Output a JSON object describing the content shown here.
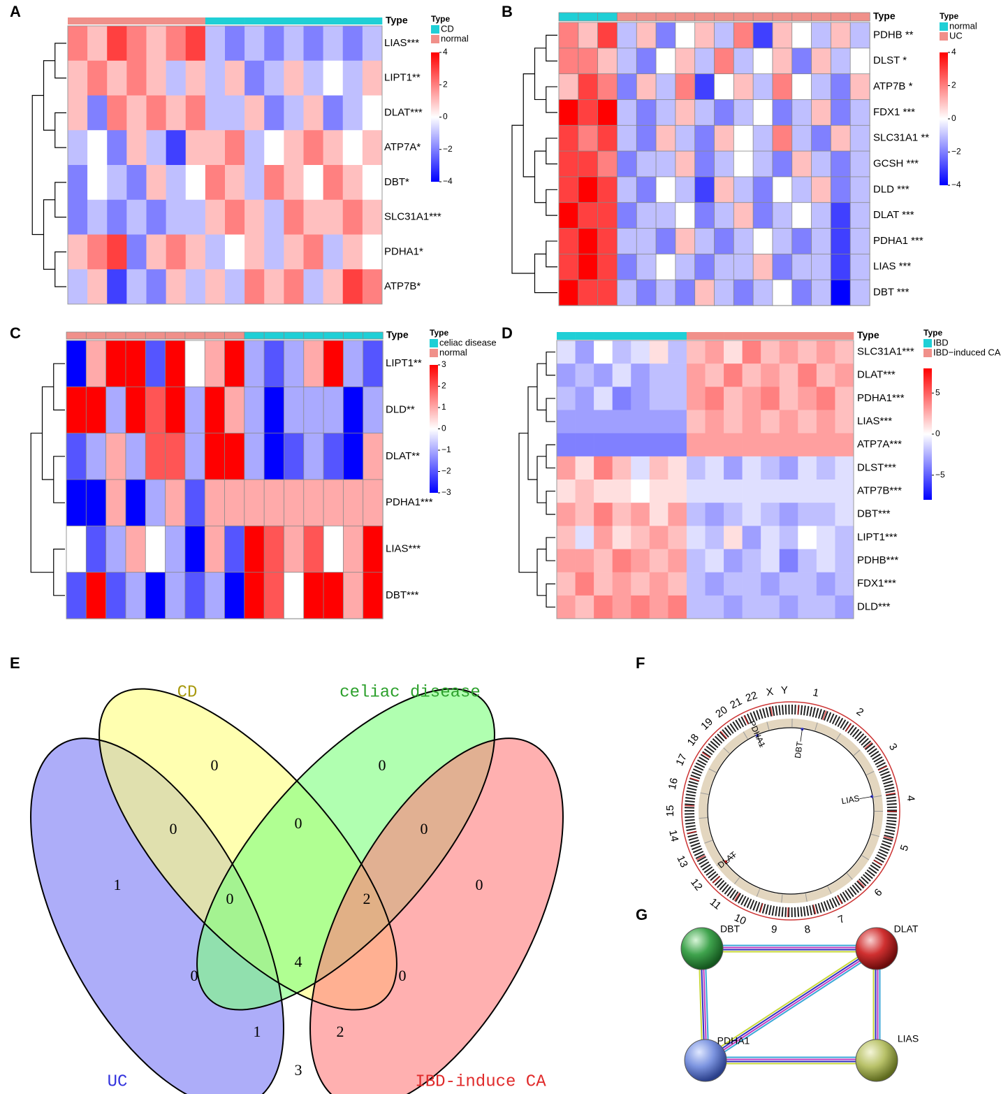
{
  "chart_data": [
    {
      "type": "heatmap",
      "panel": "A",
      "annotation_title": "Type",
      "legend_title": "Type",
      "groups": [
        {
          "name": "CD",
          "color": "#1fcfd6"
        },
        {
          "name": "normal",
          "color": "#f0908a"
        }
      ],
      "rows": [
        "LIAS***",
        "LIPT1**",
        "DLAT***",
        "ATP7A*",
        "DBT*",
        "SLC31A1***",
        "PDHA1*",
        "ATP7B*"
      ],
      "column_groups": [
        1,
        1,
        1,
        1,
        1,
        1,
        1,
        0,
        0,
        0,
        0,
        0,
        0,
        0,
        0,
        0
      ],
      "values": [
        [
          2,
          1,
          3,
          2,
          1,
          2,
          3,
          -1,
          -2,
          -1,
          -2,
          -1,
          -2,
          -1,
          -2,
          -1
        ],
        [
          1,
          2,
          1,
          2,
          1,
          -1,
          1,
          -1,
          1,
          -2,
          -1,
          1,
          -1,
          0,
          -1,
          1
        ],
        [
          1,
          -2,
          2,
          1,
          2,
          1,
          2,
          -1,
          -1,
          1,
          -2,
          -1,
          1,
          -2,
          -1,
          0
        ],
        [
          -1,
          0,
          -2,
          1,
          -1,
          -3,
          1,
          1,
          2,
          -1,
          0,
          1,
          2,
          1,
          0,
          1
        ],
        [
          -2,
          0,
          -1,
          -2,
          1,
          -1,
          0,
          2,
          1,
          -1,
          2,
          1,
          0,
          2,
          1,
          0
        ],
        [
          -2,
          -1,
          -2,
          -1,
          -2,
          -1,
          -1,
          1,
          2,
          1,
          -1,
          2,
          1,
          1,
          2,
          1
        ],
        [
          1,
          2,
          3,
          -2,
          1,
          2,
          1,
          -1,
          0,
          1,
          -1,
          1,
          2,
          -1,
          1,
          0
        ],
        [
          -1,
          1,
          -3,
          -1,
          -2,
          1,
          -1,
          1,
          -1,
          2,
          1,
          2,
          -1,
          1,
          3,
          2
        ]
      ],
      "zlim": [
        -4,
        4
      ],
      "zticks": [
        4,
        2,
        0,
        {
          "value": -2,
          "label": "−2"
        },
        {
          "value": -4,
          "label": "−4"
        }
      ],
      "colors": [
        "#0000ff",
        "#ffffff",
        "#ff0000"
      ],
      "cell_borders": false
    },
    {
      "type": "heatmap",
      "panel": "B",
      "annotation_title": "Type",
      "legend_title": "Type",
      "groups": [
        {
          "name": "normal",
          "color": "#1fcfd6"
        },
        {
          "name": "UC",
          "color": "#f0908a"
        }
      ],
      "rows": [
        "PDHB **",
        "DLST *",
        "ATP7B *",
        "FDX1 ***",
        "SLC31A1 **",
        "GCSH ***",
        "DLD ***",
        "DLAT ***",
        "PDHA1 ***",
        "LIAS ***",
        "DBT ***"
      ],
      "column_groups": [
        0,
        0,
        0,
        1,
        1,
        1,
        1,
        1,
        1,
        1,
        1,
        1,
        1,
        1,
        1,
        1
      ],
      "values": [
        [
          2,
          1,
          3,
          -1,
          1,
          -2,
          0,
          1,
          -1,
          2,
          -3,
          1,
          0,
          -1,
          1,
          -1
        ],
        [
          2,
          2,
          1,
          -1,
          -2,
          0,
          1,
          -1,
          2,
          -1,
          0,
          1,
          -2,
          1,
          -1,
          0
        ],
        [
          1,
          3,
          2,
          -2,
          1,
          -1,
          2,
          -3,
          0,
          1,
          -1,
          2,
          0,
          -1,
          -2,
          1
        ],
        [
          4,
          3,
          4,
          -1,
          -2,
          -1,
          1,
          -1,
          -2,
          -1,
          0,
          -2,
          -1,
          1,
          -2,
          -1
        ],
        [
          3,
          2,
          3,
          -1,
          -2,
          1,
          -1,
          -2,
          1,
          0,
          -1,
          2,
          -1,
          -2,
          1,
          -1
        ],
        [
          3,
          3,
          2,
          -2,
          -1,
          -1,
          1,
          -2,
          -1,
          0,
          -1,
          -2,
          1,
          -1,
          -2,
          -1
        ],
        [
          3,
          4,
          3,
          -1,
          -2,
          0,
          -1,
          -3,
          1,
          -1,
          -2,
          0,
          -1,
          1,
          -2,
          -1
        ],
        [
          4,
          3,
          3,
          -2,
          -1,
          -1,
          0,
          -2,
          -1,
          1,
          -2,
          -1,
          0,
          -1,
          -3,
          -1
        ],
        [
          3,
          4,
          3,
          -1,
          -1,
          -2,
          1,
          -1,
          -2,
          -1,
          0,
          -1,
          -2,
          -1,
          -3,
          -1
        ],
        [
          3,
          4,
          3,
          -2,
          -1,
          0,
          -1,
          -2,
          -1,
          -1,
          1,
          -2,
          -1,
          -1,
          -3,
          -1
        ],
        [
          4,
          3,
          3,
          -1,
          -2,
          -1,
          -2,
          1,
          -1,
          -2,
          -1,
          0,
          -2,
          -1,
          -4,
          -1
        ]
      ],
      "zlim": [
        -4,
        4
      ],
      "zticks": [
        4,
        2,
        0,
        {
          "value": -2,
          "label": "−2"
        },
        {
          "value": -4,
          "label": "−4"
        }
      ],
      "colors": [
        "#0000ff",
        "#ffffff",
        "#ff0000"
      ],
      "cell_borders": true
    },
    {
      "type": "heatmap",
      "panel": "C",
      "annotation_title": "Type",
      "legend_title": "Type",
      "groups": [
        {
          "name": "celiac disease",
          "color": "#1fcfd6"
        },
        {
          "name": "normal",
          "color": "#f0908a"
        }
      ],
      "rows": [
        "LIPT1**",
        "DLD**",
        "DLAT**",
        "PDHA1***",
        "LIAS***",
        "DBT***"
      ],
      "column_groups": [
        1,
        1,
        1,
        1,
        1,
        1,
        1,
        1,
        1,
        0,
        0,
        0,
        0,
        0,
        0,
        0
      ],
      "values": [
        [
          -3,
          1,
          3,
          3,
          -2,
          3,
          0,
          1,
          3,
          -1,
          -2,
          -1,
          1,
          3,
          -1,
          -2
        ],
        [
          3,
          3,
          -1,
          3,
          2,
          3,
          -1,
          3,
          1,
          -1,
          -3,
          -1,
          -1,
          -1,
          -3,
          -1
        ],
        [
          -2,
          -1,
          1,
          -1,
          2,
          2,
          -1,
          3,
          3,
          -1,
          -3,
          -2,
          -1,
          -2,
          -3,
          1
        ],
        [
          -3,
          -3,
          1,
          -3,
          -1,
          1,
          -2,
          1,
          1,
          1,
          1,
          1,
          1,
          1,
          1,
          1
        ],
        [
          0,
          -2,
          -1,
          1,
          0,
          -1,
          -3,
          1,
          -2,
          3,
          2,
          1,
          2,
          0,
          1,
          3
        ],
        [
          -2,
          3,
          -2,
          -1,
          -3,
          -1,
          -2,
          -1,
          -3,
          3,
          2,
          0,
          3,
          3,
          1,
          3
        ]
      ],
      "zlim": [
        -3,
        3
      ],
      "zticks": [
        3,
        2,
        1,
        0,
        {
          "value": -1,
          "label": "−1"
        },
        {
          "value": -2,
          "label": "−2"
        },
        {
          "value": -3,
          "label": "−3"
        }
      ],
      "colors": [
        "#0000ff",
        "#ffffff",
        "#ff0000"
      ],
      "cell_borders": true
    },
    {
      "type": "heatmap",
      "panel": "D",
      "annotation_title": "Type",
      "legend_title": "Type",
      "groups": [
        {
          "name": "IBD",
          "color": "#1fcfd6"
        },
        {
          "name": "IBD−induced CA",
          "color": "#f0908a"
        }
      ],
      "rows": [
        "SLC31A1***",
        "DLAT***",
        "PDHA1***",
        "LIAS***",
        "ATP7A***",
        "DLST***",
        "ATP7B***",
        "DBT***",
        "LIPT1***",
        "PDHB***",
        "FDX1***",
        "DLD***"
      ],
      "column_groups": [
        0,
        0,
        0,
        0,
        0,
        0,
        0,
        1,
        1,
        1,
        1,
        1,
        1,
        1,
        1,
        1
      ],
      "values": [
        [
          -1,
          -3,
          0,
          -2,
          -1,
          1,
          -2,
          2,
          3,
          1,
          4,
          2,
          3,
          2,
          3,
          2
        ],
        [
          -3,
          -2,
          -3,
          -1,
          -3,
          -2,
          -2,
          3,
          2,
          4,
          2,
          3,
          2,
          4,
          2,
          3
        ],
        [
          -2,
          -3,
          -1,
          -4,
          -3,
          -2,
          -2,
          3,
          4,
          2,
          3,
          4,
          2,
          3,
          4,
          2
        ],
        [
          -3,
          -3,
          -3,
          -3,
          -3,
          -3,
          -3,
          2,
          3,
          2,
          3,
          2,
          3,
          2,
          3,
          2
        ],
        [
          -4,
          -4,
          -4,
          -4,
          -4,
          -4,
          -4,
          3,
          3,
          3,
          3,
          3,
          3,
          3,
          3,
          3
        ],
        [
          3,
          1,
          4,
          2,
          -1,
          2,
          1,
          -2,
          -1,
          -3,
          -1,
          -2,
          -3,
          -1,
          -2,
          -1
        ],
        [
          1,
          2,
          1,
          1,
          0,
          1,
          1,
          -1,
          -1,
          -1,
          -1,
          -1,
          -1,
          -1,
          -1,
          -1
        ],
        [
          3,
          2,
          4,
          2,
          3,
          1,
          3,
          -2,
          -3,
          -2,
          -1,
          -2,
          -3,
          -2,
          -2,
          -1
        ],
        [
          2,
          -1,
          3,
          1,
          2,
          3,
          2,
          -1,
          -2,
          1,
          -3,
          -1,
          -2,
          0,
          -1,
          -2
        ],
        [
          3,
          3,
          2,
          4,
          3,
          2,
          3,
          -2,
          -1,
          -3,
          -2,
          -1,
          -4,
          -2,
          -1,
          -2
        ],
        [
          2,
          4,
          2,
          3,
          2,
          3,
          2,
          -2,
          -3,
          -2,
          -2,
          -3,
          -2,
          -2,
          -3,
          -2
        ],
        [
          3,
          2,
          4,
          3,
          4,
          3,
          4,
          -2,
          -2,
          -3,
          -2,
          -2,
          -3,
          -2,
          -2,
          -3
        ]
      ],
      "zlim": [
        -8,
        8
      ],
      "zticks": [
        5,
        0,
        {
          "value": -5,
          "label": "−5"
        }
      ],
      "colors": [
        "#0000ff",
        "#ffffff",
        "#ff0000"
      ],
      "cell_borders": false
    },
    {
      "type": "venn",
      "panel": "E",
      "sets": [
        {
          "name": "UC",
          "color": "#7a7af5",
          "label_color": "#3333dd"
        },
        {
          "name": "CD",
          "color": "#ffff80",
          "label_color": "#a89a10"
        },
        {
          "name": "celiac disease",
          "color": "#80ff80",
          "label_color": "#2ca02c"
        },
        {
          "name": "IBD-induce CA",
          "color": "#ff7f7f",
          "label_color": "#e02a2a"
        }
      ],
      "values": [
        1,
        0,
        0,
        0,
        0,
        0,
        0,
        0,
        2,
        0,
        0,
        4,
        1,
        2,
        3
      ]
    },
    {
      "type": "circos",
      "panel": "F",
      "chromosomes": [
        "1",
        "2",
        "3",
        "4",
        "5",
        "6",
        "7",
        "8",
        "9",
        "10",
        "11",
        "12",
        "13",
        "14",
        "15",
        "16",
        "17",
        "18",
        "19",
        "20",
        "21",
        "22",
        "X",
        "Y"
      ],
      "genes": [
        "DBT",
        "PDHA1",
        "LIAS",
        "DLAT"
      ]
    },
    {
      "type": "network",
      "panel": "G",
      "nodes": [
        "DBT",
        "DLAT",
        "PDHA1",
        "LIAS"
      ]
    }
  ]
}
